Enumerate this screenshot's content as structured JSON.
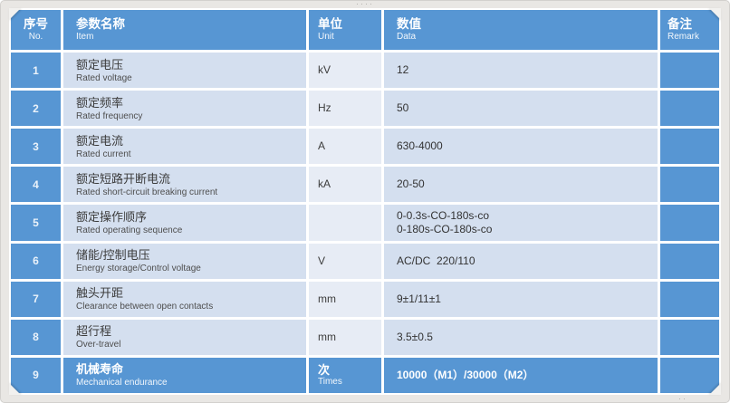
{
  "colors": {
    "accent_blue": "#5796d3",
    "cell_light": "#d4dfef",
    "cell_lighter": "#e7ecf5",
    "frame_gray": "#e9e7e4",
    "text_dark": "#3c3c3c"
  },
  "table": {
    "columns": [
      {
        "zh": "序号",
        "en": "No."
      },
      {
        "zh": "参数名称",
        "en": "Item"
      },
      {
        "zh": "单位",
        "en": "Unit"
      },
      {
        "zh": "数值",
        "en": "Data"
      },
      {
        "zh": "备注",
        "en": "Remark"
      }
    ],
    "rows": [
      {
        "no": "1",
        "item_zh": "额定电压",
        "item_en": "Rated voltage",
        "unit": "kV",
        "unit_en": "",
        "data1": "12",
        "data2": "",
        "remark": "",
        "highlight": false
      },
      {
        "no": "2",
        "item_zh": "额定频率",
        "item_en": "Rated frequency",
        "unit": "Hz",
        "unit_en": "",
        "data1": "50",
        "data2": "",
        "remark": "",
        "highlight": false
      },
      {
        "no": "3",
        "item_zh": "额定电流",
        "item_en": "Rated current",
        "unit": "A",
        "unit_en": "",
        "data1": "630-4000",
        "data2": "",
        "remark": "",
        "highlight": false
      },
      {
        "no": "4",
        "item_zh": "额定短路开断电流",
        "item_en": "Rated short-circuit breaking current",
        "unit": "kA",
        "unit_en": "",
        "data1": "20-50",
        "data2": "",
        "remark": "",
        "highlight": false
      },
      {
        "no": "5",
        "item_zh": "额定操作顺序",
        "item_en": "Rated operating sequence",
        "unit": "",
        "unit_en": "",
        "data1": "0-0.3s-CO-180s-co",
        "data2": "0-180s-CO-180s-co",
        "remark": "",
        "highlight": false
      },
      {
        "no": "6",
        "item_zh": "储能/控制电压",
        "item_en": "Energy storage/Control voltage",
        "unit": "V",
        "unit_en": "",
        "data1": "AC/DC  220/110",
        "data2": "",
        "remark": "",
        "highlight": false
      },
      {
        "no": "7",
        "item_zh": "触头开距",
        "item_en": "Clearance between open contacts",
        "unit": "mm",
        "unit_en": "",
        "data1": "9±1/11±1",
        "data2": "",
        "remark": "",
        "highlight": false
      },
      {
        "no": "8",
        "item_zh": "超行程",
        "item_en": "Over-travel",
        "unit": "mm",
        "unit_en": "",
        "data1": "3.5±0.5",
        "data2": "",
        "remark": "",
        "highlight": false
      },
      {
        "no": "9",
        "item_zh": "机械寿命",
        "item_en": "Mechanical endurance",
        "unit": "次",
        "unit_en": "Times",
        "data1": "10000（M1）/30000（M2）",
        "data2": "",
        "remark": "",
        "highlight": true
      }
    ]
  }
}
